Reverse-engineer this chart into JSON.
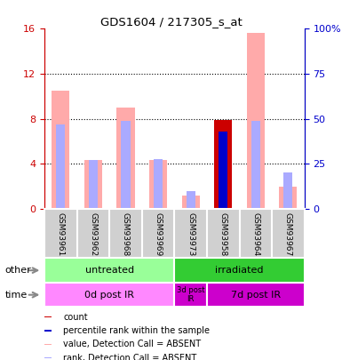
{
  "title": "GDS1604 / 217305_s_at",
  "samples": [
    "GSM93961",
    "GSM93962",
    "GSM93968",
    "GSM93969",
    "GSM93973",
    "GSM93958",
    "GSM93964",
    "GSM93967"
  ],
  "left_ylim": [
    0,
    16
  ],
  "right_ylim": [
    0,
    100
  ],
  "left_yticks": [
    0,
    4,
    8,
    12,
    16
  ],
  "right_yticks": [
    0,
    25,
    50,
    75,
    100
  ],
  "right_yticklabels": [
    "0",
    "25",
    "50",
    "75",
    "100%"
  ],
  "left_ycolor": "#cc0000",
  "right_ycolor": "#0000cc",
  "pink_bar_values": [
    10.5,
    4.3,
    9.0,
    4.3,
    1.2,
    0.0,
    15.6,
    2.0
  ],
  "light_blue_bar_values": [
    47.0,
    27.0,
    49.0,
    27.5,
    10.0,
    0.0,
    49.0,
    20.0
  ],
  "red_bar_values": [
    0.0,
    0.0,
    0.0,
    0.0,
    0.0,
    7.9,
    0.0,
    0.0
  ],
  "blue_bar_values": [
    0.0,
    0.0,
    0.0,
    0.0,
    0.0,
    43.0,
    0.0,
    0.0
  ],
  "pink_color": "#ffaaaa",
  "light_blue_color": "#aaaaff",
  "red_color": "#cc0000",
  "blue_color": "#0000cc",
  "group_other": [
    {
      "label": "untreated",
      "start": 0,
      "end": 4,
      "color": "#99ff99"
    },
    {
      "label": "irradiated",
      "start": 4,
      "end": 8,
      "color": "#33cc33"
    }
  ],
  "group_time": [
    {
      "label": "0d post IR",
      "start": 0,
      "end": 4,
      "color": "#ff88ff"
    },
    {
      "label": "3d post\nIR",
      "start": 4,
      "end": 5,
      "color": "#cc00cc"
    },
    {
      "label": "7d post IR",
      "start": 5,
      "end": 8,
      "color": "#cc00cc"
    }
  ],
  "legend_items": [
    {
      "color": "#cc0000",
      "label": "count"
    },
    {
      "color": "#0000cc",
      "label": "percentile rank within the sample"
    },
    {
      "color": "#ffaaaa",
      "label": "value, Detection Call = ABSENT"
    },
    {
      "color": "#aaaaff",
      "label": "rank, Detection Call = ABSENT"
    }
  ],
  "bg_color": "#d0d0d0",
  "plot_bg": "#ffffff"
}
